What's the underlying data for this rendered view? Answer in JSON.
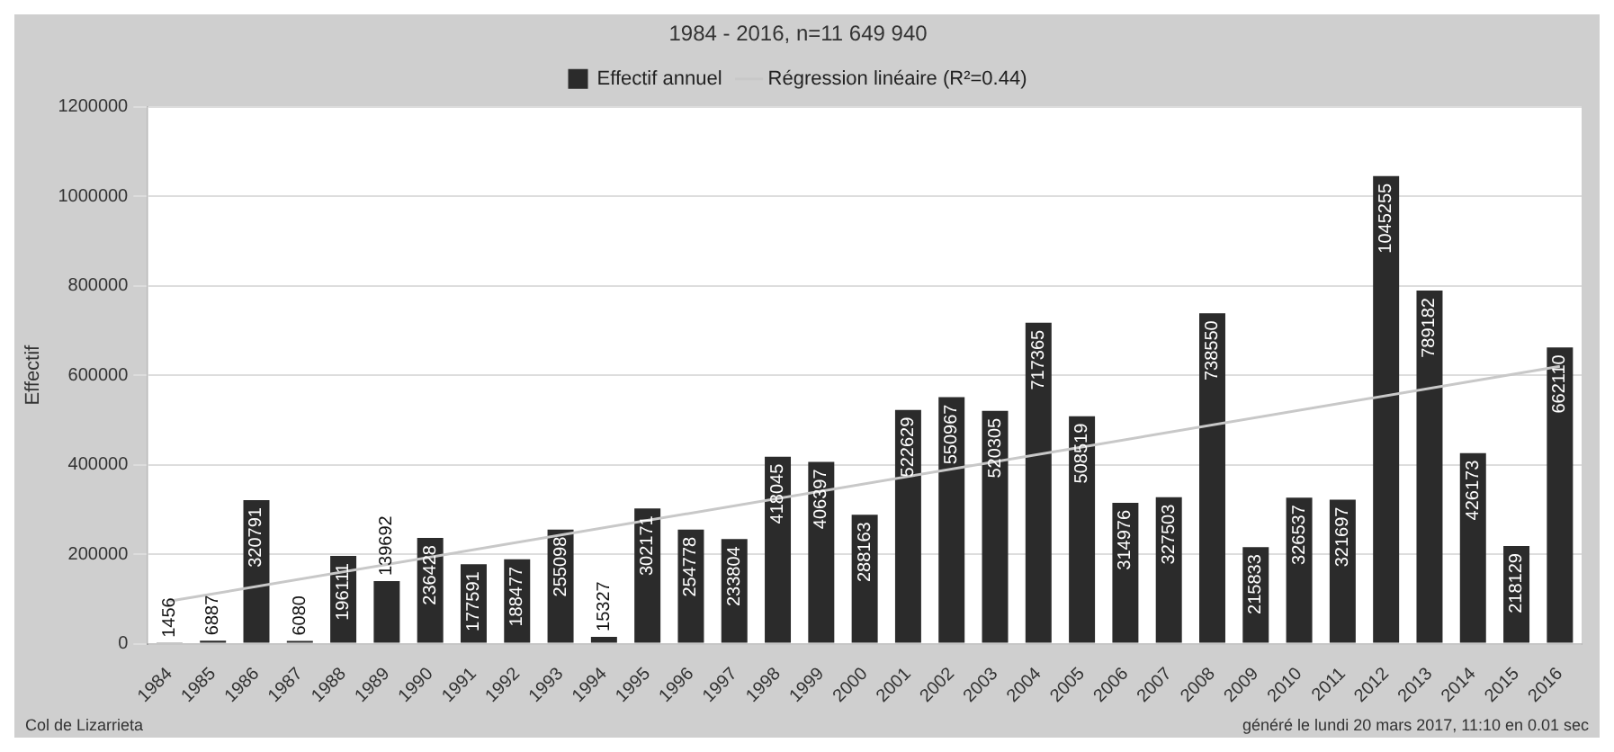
{
  "chart_data": {
    "type": "bar",
    "title": "1984 - 2016, n=11 649 940",
    "ylabel": "Effectif",
    "categories": [
      "1984",
      "1985",
      "1986",
      "1987",
      "1988",
      "1989",
      "1990",
      "1991",
      "1992",
      "1993",
      "1994",
      "1995",
      "1996",
      "1997",
      "1998",
      "1999",
      "2000",
      "2001",
      "2002",
      "2003",
      "2004",
      "2005",
      "2006",
      "2007",
      "2008",
      "2009",
      "2010",
      "2011",
      "2012",
      "2013",
      "2014",
      "2015",
      "2016"
    ],
    "series": [
      {
        "name": "Effectif annuel",
        "color": "#2b2b2b",
        "value_labels": [
          "1456",
          "6887",
          "320791",
          "6080",
          "196111",
          "139692",
          "236428",
          "177591",
          "188477",
          "255098",
          "15327",
          "302171",
          "254778",
          "233804",
          "418045",
          "406397",
          "288163",
          "522629",
          "550967",
          "520305",
          "717365",
          "508519",
          "314976",
          "327503",
          "738550",
          "215833",
          "326537",
          "321697",
          "1045255",
          "789182",
          "426173",
          "218129",
          "662110"
        ],
        "values": [
          1456,
          6887,
          320791,
          6080,
          196111,
          139692,
          236428,
          177591,
          188477,
          255098,
          15327,
          302171,
          254778,
          233804,
          418045,
          406397,
          288163,
          522629,
          550967,
          520305,
          717365,
          508519,
          314976,
          327503,
          738550,
          215833,
          326537,
          321697,
          1045255,
          789182,
          426173,
          218129,
          662110
        ]
      },
      {
        "name": "Régression linéaire (R²=0.44)",
        "type": "line",
        "color": "#c8c8c8",
        "marker": "none",
        "values": [
          95000,
          null,
          null,
          null,
          null,
          null,
          null,
          null,
          null,
          null,
          null,
          null,
          null,
          null,
          null,
          null,
          null,
          null,
          null,
          null,
          null,
          null,
          null,
          null,
          null,
          null,
          null,
          null,
          null,
          null,
          null,
          null,
          620000
        ]
      }
    ],
    "ylim": [
      0,
      1200000
    ],
    "yticks": [
      0,
      200000,
      400000,
      600000,
      800000,
      1000000,
      1200000
    ],
    "grid": "y",
    "legend": "top",
    "annotations": [
      "Col de Lizarrieta",
      "généré le lundi 20 mars 2017, 11:10 en 0.01 sec"
    ]
  }
}
